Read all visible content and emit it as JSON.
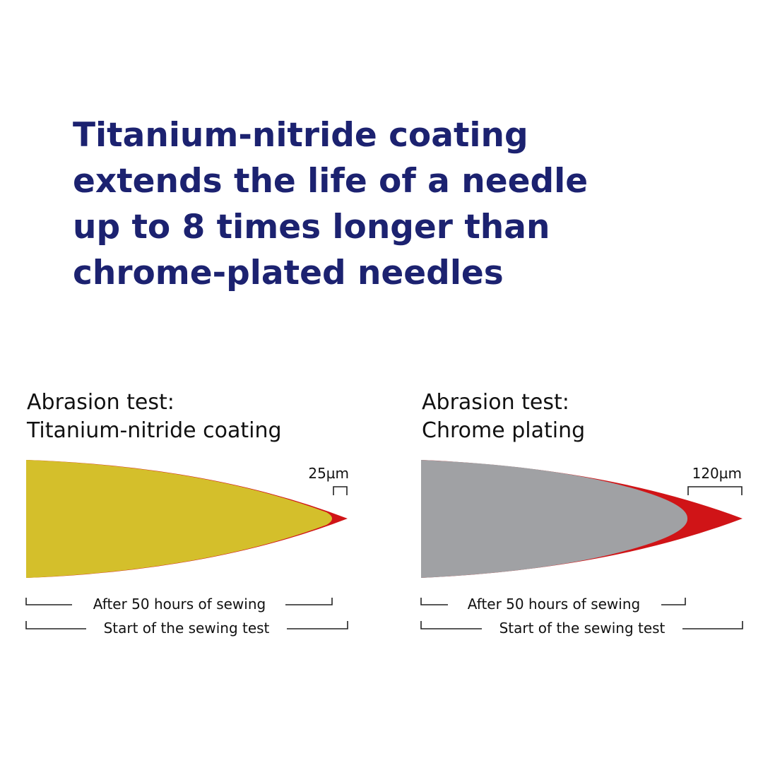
{
  "title": {
    "lines": [
      "Titanium-nitride coating",
      "extends the life of a needle",
      "up to 8 times longer than",
      "chrome-plated needles"
    ]
  },
  "colors": {
    "title": "#1c2270",
    "titanium": "#d4bf2b",
    "chrome": "#a0a1a4",
    "wear": "#d01417"
  },
  "panels": [
    {
      "heading1": "Abrasion test:",
      "heading2": "Titanium-nitride coating",
      "wear_label": "25µm",
      "after_label": "After 50 hours of sewing",
      "start_label": "Start of the sewing test"
    },
    {
      "heading1": "Abrasion test:",
      "heading2": "Chrome plating",
      "wear_label": "120µm",
      "after_label": "After 50 hours of sewing",
      "start_label": "Start of the sewing test"
    }
  ]
}
